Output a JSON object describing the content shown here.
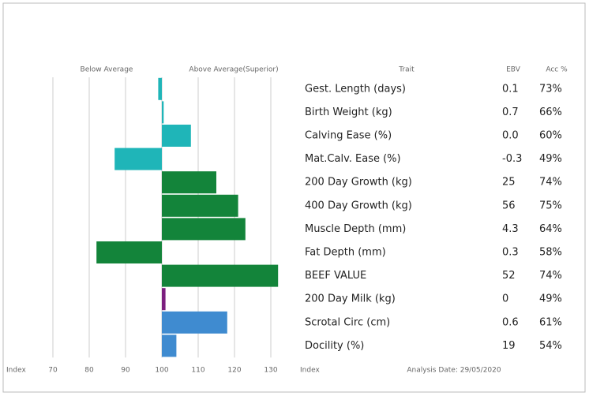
{
  "chart_data": {
    "type": "bar",
    "header_left": "Below Average",
    "header_right": "Above Average(Superior)",
    "col_trait": "Trait",
    "col_ebv": "EBV",
    "col_acc": "Acc %",
    "xlabel": "Index",
    "table_label": "Index",
    "analysis_date": "Analysis Date: 29/05/2020",
    "categories": [
      "Gest. Length (days)",
      "Birth Weight (kg)",
      "Calving Ease (%)",
      "Mat.Calv. Ease (%)",
      "200 Day Growth (kg)",
      "400 Day Growth (kg)",
      "Muscle Depth (mm)",
      "Fat Depth (mm)",
      "BEEF VALUE",
      "200 Day Milk (kg)",
      "Scrotal Circ (cm)",
      "Docility (%)"
    ],
    "values": [
      99,
      100.5,
      108,
      87,
      115,
      121,
      123,
      82,
      132,
      101,
      118,
      104
    ],
    "ebv": [
      "0.1",
      "0.7",
      "0.0",
      "-0.3",
      "25",
      "56",
      "4.3",
      "0.3",
      "52",
      "0",
      "0.6",
      "19"
    ],
    "acc": [
      "73%",
      "66%",
      "60%",
      "49%",
      "74%",
      "75%",
      "64%",
      "58%",
      "74%",
      "49%",
      "61%",
      "54%"
    ],
    "colors": [
      "#1fb5b8",
      "#1fb5b8",
      "#1fb5b8",
      "#1fb5b8",
      "#13843a",
      "#13843a",
      "#13843a",
      "#13843a",
      "#13843a",
      "#7b1f7e",
      "#3f8bd0",
      "#3f8bd0"
    ],
    "base": 100,
    "xlim": [
      60,
      135
    ],
    "xticks": [
      70,
      80,
      90,
      100,
      110,
      120,
      130
    ],
    "grid": true
  }
}
